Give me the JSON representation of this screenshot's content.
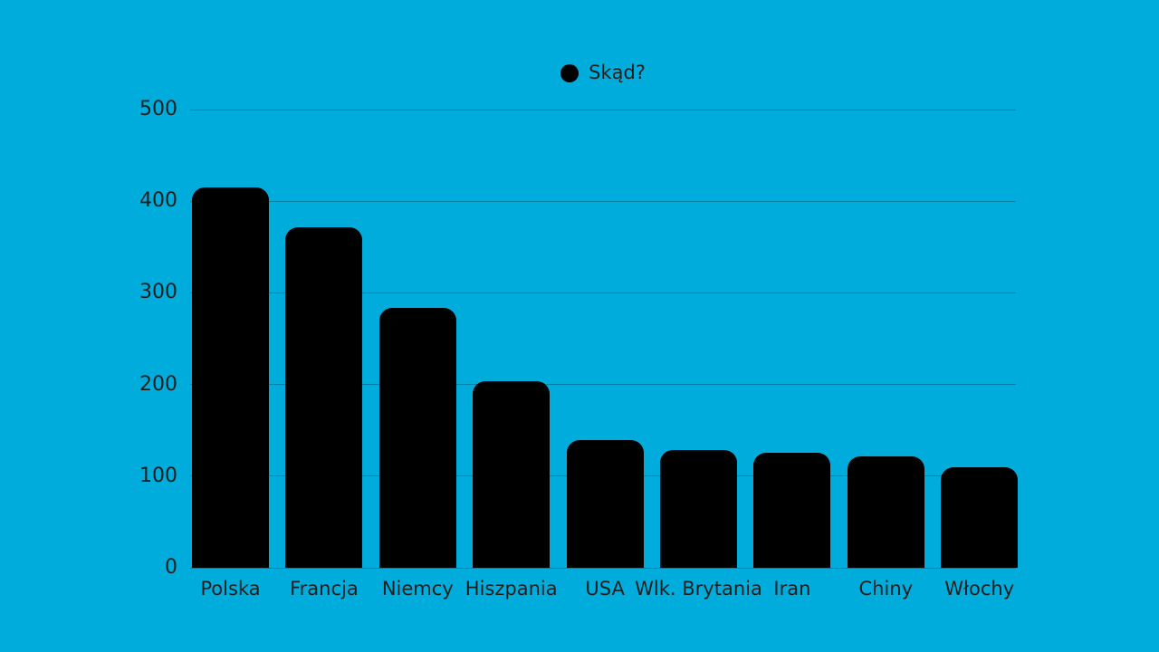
{
  "chart_data": {
    "type": "bar",
    "title": "",
    "legend": {
      "label": "Skąd?",
      "marker": "circle",
      "position": "top-center"
    },
    "categories": [
      "Polska",
      "Francja",
      "Niemcy",
      "Hiszpania",
      "USA",
      "Wlk. Brytania",
      "Iran",
      "Chiny",
      "Włochy"
    ],
    "values": [
      415,
      372,
      284,
      204,
      139,
      128,
      125,
      122,
      110
    ],
    "xlabel": "",
    "ylabel": "",
    "ylim": [
      0,
      500
    ],
    "yticks": [
      0,
      100,
      200,
      300,
      400,
      500
    ],
    "grid": "horizontal",
    "colors": {
      "background": "#00acdc",
      "bar": "#000000",
      "text": "#1f1f1f",
      "gridline": "rgba(0,0,0,0.25)",
      "legend_marker": "#000000"
    }
  }
}
